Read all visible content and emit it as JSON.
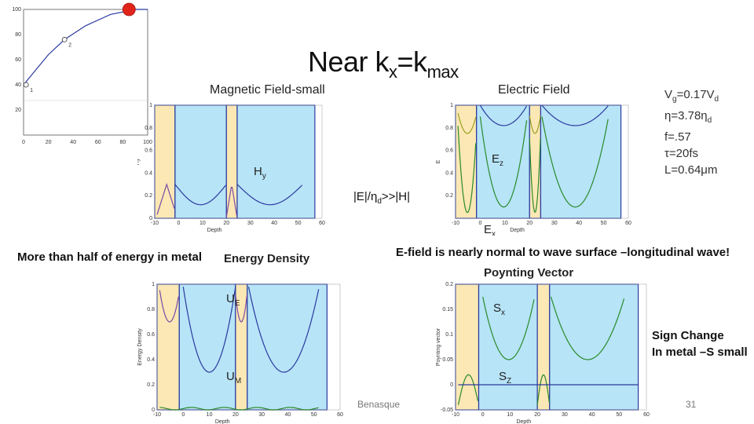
{
  "slide": {
    "title_main": "Near k",
    "title_sub1": "x",
    "title_mid": "=k",
    "title_sub2": "max",
    "page_number": "31",
    "footer_text": "Benasque"
  },
  "headers": {
    "magnetic": "Magnetic Field-small",
    "electric": "Electric  Field",
    "energy_density": "Energy Density",
    "poynting": "Poynting Vector"
  },
  "notes": {
    "ratio": "|E|/η",
    "ratio_sub": "d",
    "ratio_tail": ">>|H|",
    "metal_energy": "More than half of energy in metal",
    "longitudinal": "E-field is nearly normal to wave surface –longitudinal wave!",
    "sign_change_1": "Sign Change",
    "sign_change_2": "In metal –S small"
  },
  "params": [
    {
      "a": "V",
      "s": "g",
      "b": "=0.17V",
      "s2": "d"
    },
    {
      "a": "η=3.78η",
      "s": "",
      "b": "",
      "s2": "d"
    },
    {
      "a": "f=.57",
      "s": "",
      "b": "",
      "s2": ""
    },
    {
      "a": "τ=20fs",
      "s": "",
      "b": "",
      "s2": ""
    },
    {
      "a": "L=0.64μm",
      "s": "",
      "b": "",
      "s2": ""
    }
  ],
  "colors": {
    "metal": "#fbe8b4",
    "dielectric": "#b7e4f7",
    "curve_blue": "#2a3aa0",
    "curve_green": "#2a8a2a",
    "curve_purple": "#7a4aa8",
    "curve_yellowgreen": "#9aa020",
    "marker_red": "#e0241a"
  },
  "chart_data": [
    {
      "type": "line",
      "xlim": [
        0,
        100
      ],
      "ylim": [
        0,
        100
      ],
      "xticks": [
        "0",
        "20",
        "40",
        "60",
        "80",
        "100"
      ],
      "yticks": [
        "20",
        "40",
        "60",
        "80",
        "100"
      ],
      "series": [
        {
          "x": [
            0,
            10,
            20,
            33,
            50,
            70,
            90,
            100
          ],
          "y": [
            40,
            52,
            64,
            76,
            87,
            96,
            100,
            100
          ]
        }
      ],
      "points": [
        {
          "label": "1",
          "x": 2,
          "y": 40
        },
        {
          "label": "2",
          "x": 33,
          "y": 76
        }
      ]
    },
    {
      "type": "line",
      "xlabel": "Depth",
      "ylabel": "Hy",
      "xlim": [
        -10,
        60
      ],
      "ylim": [
        0,
        1
      ],
      "xticks": [
        "-10",
        "0",
        "10",
        "20",
        "30",
        "40",
        "50",
        "60"
      ],
      "yticks": [
        "0",
        "0.2",
        "0.4",
        "0.6",
        "0.8",
        "1"
      ],
      "labels": [
        "H",
        "y"
      ]
    },
    {
      "type": "line",
      "xlabel": "Depth",
      "ylabel": "E",
      "xlim": [
        -10,
        60
      ],
      "ylim": [
        0,
        1
      ],
      "xticks": [
        "-10",
        "0",
        "10",
        "20",
        "30",
        "40",
        "50",
        "60"
      ],
      "yticks": [
        "0.2",
        "0.4",
        "0.6",
        "0.8",
        "1"
      ],
      "labels": [
        "E",
        "z",
        "E",
        "x"
      ]
    },
    {
      "type": "line",
      "xlabel": "Depth",
      "ylabel": "Energy Density",
      "xlim": [
        -10,
        60
      ],
      "ylim": [
        0,
        1
      ],
      "xticks": [
        "-10",
        "0",
        "10",
        "20",
        "30",
        "40",
        "50",
        "60"
      ],
      "yticks": [
        "0",
        "0.2",
        "0.4",
        "0.6",
        "0.8",
        "1"
      ],
      "labels": [
        "U",
        "E",
        "U",
        "M"
      ]
    },
    {
      "type": "line",
      "xlabel": "Depth",
      "ylabel": "Poynting vector",
      "xlim": [
        -10,
        60
      ],
      "ylim": [
        -0.05,
        0.2
      ],
      "xticks": [
        "-10",
        "0",
        "10",
        "20",
        "30",
        "40",
        "50",
        "60"
      ],
      "yticks": [
        "-0.05",
        "0",
        "0.05",
        "0.1",
        "0.15",
        "0.2"
      ],
      "labels": [
        "S",
        "x",
        "S",
        "Z"
      ]
    }
  ]
}
